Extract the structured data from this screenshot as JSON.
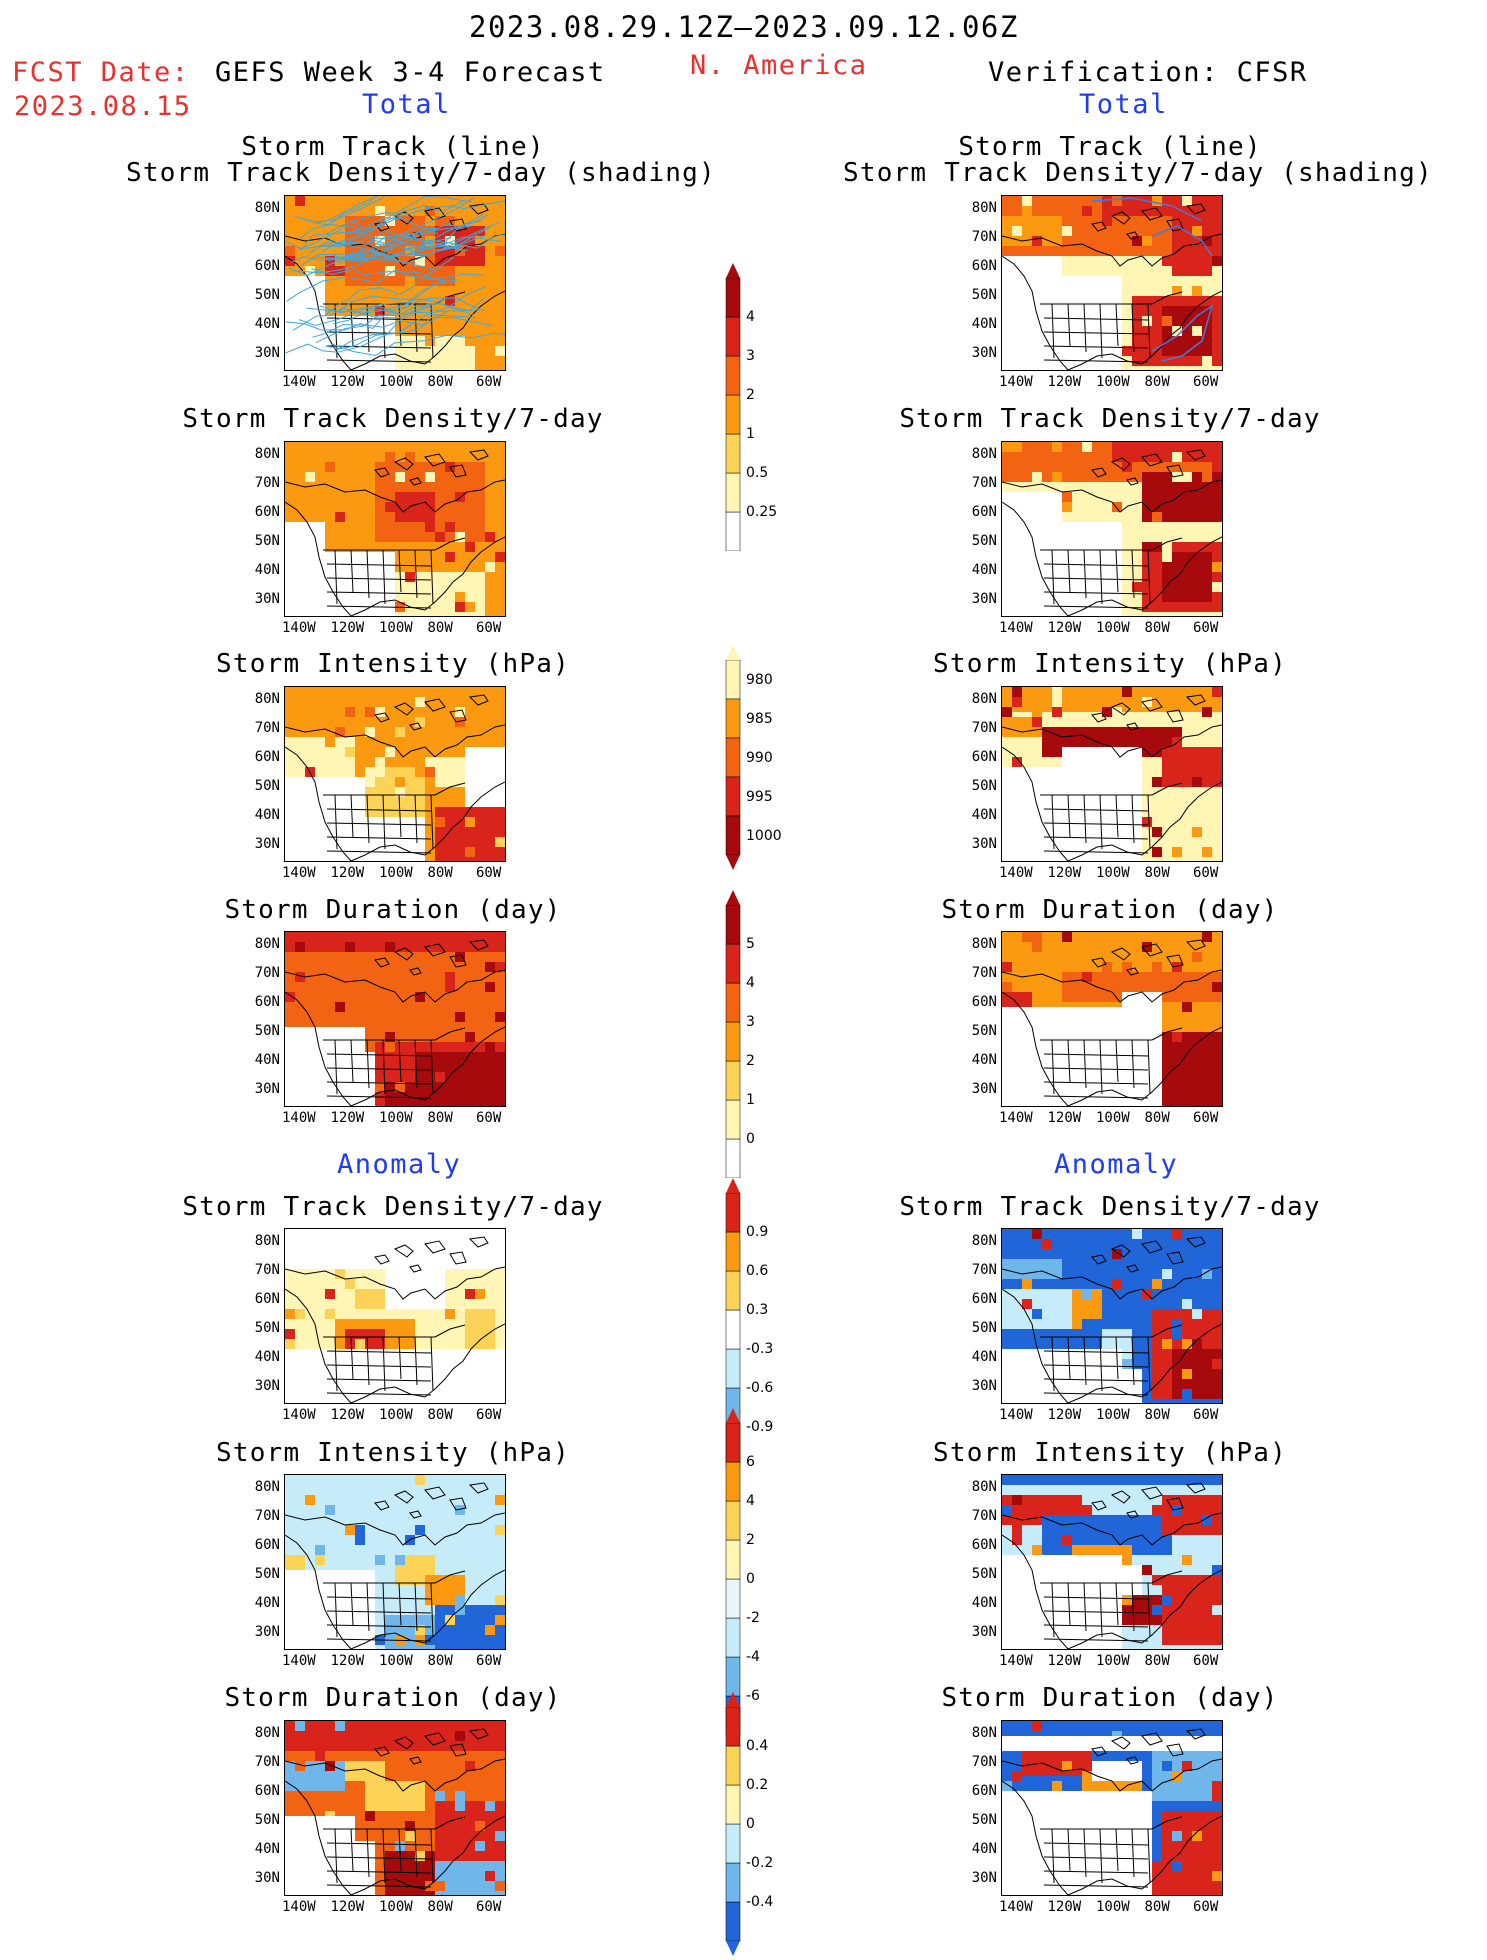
{
  "header": {
    "period": "2023.08.29.12Z–2023.09.12.06Z",
    "fcst_label": "FCST Date:",
    "fcst_date": "2023.08.15",
    "product": "GEFS Week 3-4 Forecast",
    "region": "N. America",
    "verification": "Verification: CFSR"
  },
  "section_labels": {
    "total_left": "Total",
    "total_right": "Total",
    "anom_left": "Anomaly",
    "anom_right": "Anomaly"
  },
  "panel_titles": {
    "track_line": "Storm Track (line)",
    "track_shading": "Storm Track Density/7-day (shading)",
    "density": "Storm Track Density/7-day",
    "intensity": "Storm Intensity (hPa)",
    "duration": "Storm Duration (day)"
  },
  "axes": {
    "lat": [
      "80N",
      "70N",
      "60N",
      "50N",
      "40N",
      "30N"
    ],
    "lon": [
      "140W",
      "120W",
      "100W",
      "80W",
      "60W"
    ]
  },
  "colorbars": {
    "density_total": [
      "0.25",
      "0.5",
      "1",
      "2",
      "3",
      "4"
    ],
    "intensity_total": [
      "980",
      "985",
      "990",
      "995",
      "1000"
    ],
    "duration_total": [
      "0",
      "1",
      "2",
      "3",
      "4",
      "5"
    ],
    "density_anom": [
      "-0.9",
      "-0.6",
      "-0.3",
      "0.3",
      "0.6",
      "0.9"
    ],
    "intensity_anom": [
      "-6",
      "-4",
      "-2",
      "0",
      "2",
      "4",
      "6"
    ],
    "duration_anom": [
      "-0.4",
      "-0.2",
      "0",
      "0.2",
      "0.4"
    ]
  },
  "colors": {
    "title_red": "#e8302f",
    "label_blue": "#1f3cf0",
    "pale_yellow": "#fff5b5",
    "yellow": "#fcd257",
    "orange": "#fb9a10",
    "dark_orange": "#f26412",
    "red": "#d8241a",
    "dark_red": "#a60a0d",
    "light_blue": "#c5ecf8",
    "mid_blue": "#6fb6ea",
    "blue": "#2166d9",
    "track_line": "#3da9e0"
  }
}
